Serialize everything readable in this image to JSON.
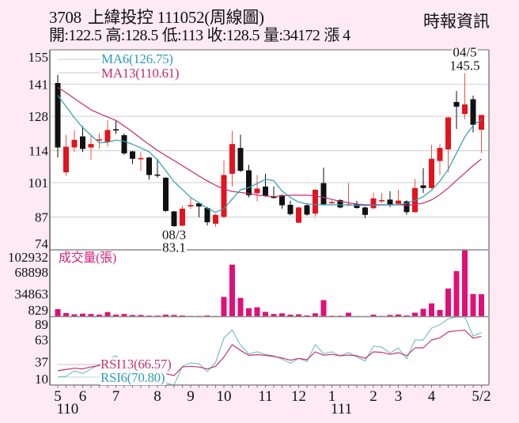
{
  "header": {
    "stock_code": "3708",
    "stock_name": "上緯投控",
    "period": "111052(周線圖)",
    "quote": [
      {
        "label": "開:",
        "value": "122.5"
      },
      {
        "label": "高:",
        "value": "128.5"
      },
      {
        "label": "低:",
        "value": "113"
      },
      {
        "label": "收:",
        "value": "128.5"
      },
      {
        "label": "量:",
        "value": "34172"
      },
      {
        "label": "漲 ",
        "value": "4"
      }
    ],
    "source": "時報資訊"
  },
  "chart_data": {
    "type": "candlestick",
    "title": "3708 上緯投控 111052(周線圖)",
    "interval": "weekly",
    "colors": {
      "up": "#e3141c",
      "up_wick": "#e8553f",
      "down": "#111111",
      "ma6": "#2f9db5",
      "ma13": "#c82a6c",
      "volume": "#e0107a",
      "rsi6": "#7cc0c9",
      "rsi13": "#c8336e",
      "volume_label": "#d4237a"
    },
    "x": {
      "count": 52,
      "month_labels": [
        {
          "label": "5",
          "index": 0
        },
        {
          "label": "6",
          "index": 3
        },
        {
          "label": "7",
          "index": 7
        },
        {
          "label": "8",
          "index": 12
        },
        {
          "label": "9",
          "index": 16
        },
        {
          "label": "10",
          "index": 20
        },
        {
          "label": "11",
          "index": 25
        },
        {
          "label": "12",
          "index": 29
        },
        {
          "label": "1",
          "index": 33
        },
        {
          "label": "2",
          "index": 38
        },
        {
          "label": "3",
          "index": 41
        },
        {
          "label": "4",
          "index": 45
        },
        {
          "label": "5/2",
          "index": 51
        }
      ],
      "year_labels": [
        {
          "label": "110",
          "index": 0
        },
        {
          "label": "111",
          "index": 33
        }
      ]
    },
    "price": {
      "ylim": [
        74,
        155
      ],
      "yticks": [
        155,
        141,
        128,
        114,
        101,
        87,
        74
      ],
      "grid": true,
      "candle_format": [
        "open",
        "high",
        "low",
        "close"
      ],
      "candles": [
        [
          141.5,
          144.8,
          111.2,
          115.3
        ],
        [
          105.2,
          120.5,
          103.7,
          115.6
        ],
        [
          115.3,
          122.2,
          113.4,
          118.4
        ],
        [
          119.8,
          124.0,
          113.4,
          114.7
        ],
        [
          115.3,
          120.0,
          110.3,
          116.7
        ],
        [
          118.1,
          121.1,
          114.8,
          118.6
        ],
        [
          117.6,
          126.4,
          115.6,
          122.4
        ],
        [
          122.7,
          126.1,
          120.8,
          122.4
        ],
        [
          120.3,
          121.0,
          112.3,
          112.9
        ],
        [
          113.7,
          113.9,
          108.5,
          110.7
        ],
        [
          110.7,
          113.4,
          105.7,
          111.0
        ],
        [
          111.2,
          111.5,
          102.2,
          104.1
        ],
        [
          104.3,
          110.7,
          103.0,
          104.1
        ],
        [
          103.0,
          103.2,
          89.1,
          89.5
        ],
        [
          89.3,
          89.5,
          83.1,
          83.3
        ],
        [
          83.5,
          91.7,
          83.2,
          90.4
        ],
        [
          91.3,
          94.8,
          90.2,
          91.9
        ],
        [
          92.6,
          93.1,
          86.9,
          91.3
        ],
        [
          90.7,
          91.2,
          83.6,
          84.9
        ],
        [
          84.3,
          88.3,
          83.0,
          87.9
        ],
        [
          87.1,
          110.1,
          86.5,
          104.1
        ],
        [
          104.6,
          122.0,
          99.4,
          116.7
        ],
        [
          115.1,
          120.5,
          105.3,
          105.8
        ],
        [
          106.0,
          108.2,
          95.0,
          95.9
        ],
        [
          96.7,
          104.1,
          93.4,
          98.6
        ],
        [
          99.4,
          104.6,
          95.2,
          95.7
        ],
        [
          95.3,
          99.4,
          94.5,
          94.8
        ],
        [
          95.9,
          96.2,
          90.4,
          91.8
        ],
        [
          92.0,
          93.7,
          87.7,
          88.2
        ],
        [
          84.7,
          91.2,
          84.6,
          90.9
        ],
        [
          91.8,
          92.5,
          87.6,
          88.0
        ],
        [
          88.4,
          98.4,
          87.2,
          98.1
        ],
        [
          100.8,
          107.1,
          91.8,
          92.2
        ],
        [
          92.8,
          93.9,
          92.4,
          93.1
        ],
        [
          93.9,
          94.3,
          90.6,
          90.9
        ],
        [
          92.0,
          100.8,
          91.6,
          92.2
        ],
        [
          92.4,
          93.6,
          90.4,
          90.7
        ],
        [
          90.9,
          91.2,
          86.6,
          87.9
        ],
        [
          90.6,
          97.0,
          90.3,
          94.6
        ],
        [
          93.6,
          96.9,
          92.6,
          93.9
        ],
        [
          94.1,
          97.5,
          91.0,
          92.0
        ],
        [
          92.4,
          98.1,
          92.2,
          93.7
        ],
        [
          93.4,
          93.8,
          88.0,
          89.0
        ],
        [
          89.0,
          102.5,
          88.8,
          98.8
        ],
        [
          99.9,
          106.9,
          96.8,
          98.8
        ],
        [
          98.8,
          116.4,
          98.5,
          110.7
        ],
        [
          109.8,
          116.7,
          104.1,
          115.1
        ],
        [
          114.5,
          127.8,
          105.2,
          127.5
        ],
        [
          133.8,
          138.3,
          122.8,
          131.9
        ],
        [
          128.9,
          145.5,
          126.8,
          132.8
        ],
        [
          134.9,
          136.4,
          121.4,
          124.5
        ],
        [
          122.5,
          128.5,
          113.0,
          128.5
        ]
      ],
      "ma6": [
        136.5,
        132.0,
        127.4,
        123.4,
        120.3,
        117.2,
        117.4,
        118.3,
        117.8,
        116.6,
        115.1,
        113.5,
        110.3,
        105.9,
        101.4,
        98.2,
        95.0,
        92.8,
        90.6,
        88.9,
        90.4,
        94.3,
        98.1,
        99.0,
        100.6,
        102.4,
        101.8,
        97.6,
        95.0,
        93.1,
        92.4,
        92.1,
        92.0,
        92.0,
        92.0,
        91.9,
        91.8,
        91.7,
        91.8,
        91.9,
        92.0,
        92.0,
        92.6,
        93.8,
        95.3,
        97.9,
        101.6,
        106.4,
        113.0,
        119.6,
        124.2,
        126.75
      ],
      "ma13": [
        139.7,
        137.6,
        135.2,
        132.9,
        130.6,
        129.1,
        127.7,
        126.3,
        124.0,
        121.6,
        119.0,
        116.5,
        114.1,
        112.0,
        110.0,
        107.9,
        105.8,
        103.7,
        101.7,
        99.9,
        98.4,
        97.4,
        97.0,
        96.6,
        96.0,
        95.6,
        95.3,
        95.6,
        95.9,
        95.9,
        95.9,
        95.6,
        95.0,
        94.2,
        93.4,
        92.8,
        92.3,
        92.0,
        92.0,
        92.0,
        92.0,
        92.0,
        91.8,
        92.1,
        92.7,
        94.0,
        96.1,
        98.8,
        101.9,
        104.9,
        107.9,
        110.61
      ],
      "legend": [
        {
          "key": "ma6",
          "label": "MA6(126.75)"
        },
        {
          "key": "ma13",
          "label": "MA13(110.61)"
        }
      ],
      "annotations": [
        {
          "index": 14,
          "position": "below",
          "lines": [
            "08/3",
            "83.1"
          ]
        },
        {
          "index": 49,
          "position": "above",
          "lines": [
            "04/5",
            "145.5"
          ]
        }
      ]
    },
    "volume": {
      "label": "成交量(張)",
      "ylim": [
        0,
        102932
      ],
      "yticks": [
        102932,
        68898,
        34863,
        829
      ],
      "values": [
        11000,
        5000,
        3000,
        4000,
        3500,
        2500,
        6500,
        2500,
        3500,
        2000,
        2000,
        1000,
        1000,
        2500,
        2000,
        1200,
        500,
        500,
        1200,
        500,
        30000,
        80000,
        28500,
        12500,
        14000,
        6800,
        3500,
        4500,
        2500,
        3000,
        1300,
        4500,
        25000,
        800,
        800,
        5500,
        300,
        200,
        2500,
        500,
        2000,
        2800,
        1300,
        5500,
        11500,
        20000,
        9800,
        43000,
        70000,
        102932,
        34500,
        34172
      ]
    },
    "rsi": {
      "ylim": [
        10,
        89
      ],
      "yticks": [
        89,
        63,
        37,
        10
      ],
      "rsi6": [
        19.5,
        20.1,
        26.6,
        23.5,
        28.7,
        33.9,
        40.0,
        44.0,
        35.0,
        30.0,
        26.0,
        22.0,
        16.0,
        12.5,
        10.0,
        31.8,
        35.7,
        34.8,
        25.6,
        36.4,
        64.5,
        74.0,
        56.3,
        46.2,
        48.6,
        45.6,
        44.0,
        40.0,
        35.5,
        41.0,
        37.3,
        56.9,
        46.5,
        48.6,
        44.0,
        48.0,
        42.4,
        37.9,
        55.3,
        54.1,
        47.1,
        53.2,
        40.3,
        62.4,
        62.4,
        76.1,
        80.1,
        86.9,
        89.0,
        89.0,
        67.0,
        70.8
      ],
      "rsi13": [
        26.6,
        28.0,
        29.6,
        28.7,
        31.0,
        32.7,
        34.0,
        35.0,
        33.0,
        31.0,
        29.0,
        27.0,
        25.0,
        23.2,
        21.0,
        30.9,
        31.8,
        30.9,
        28.7,
        31.8,
        42.4,
        56.9,
        50.2,
        44.5,
        45.3,
        44.5,
        43.2,
        41.5,
        38.8,
        41.0,
        39.4,
        48.6,
        44.6,
        45.6,
        44.0,
        44.9,
        44.0,
        41.0,
        48.6,
        48.0,
        45.6,
        47.7,
        44.0,
        53.2,
        53.2,
        62.4,
        64.8,
        71.6,
        73.1,
        73.7,
        64.5,
        66.57
      ],
      "legend": [
        {
          "key": "rsi13",
          "label": "RSI13(66.57)"
        },
        {
          "key": "rsi6",
          "label": "RSI6(70.80)"
        }
      ]
    }
  }
}
